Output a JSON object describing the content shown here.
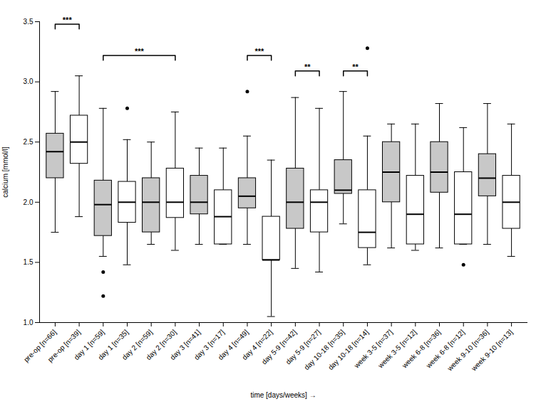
{
  "chart_data": {
    "type": "box",
    "xlabel": "time [days/weeks]",
    "ylabel": "calcium [mmol/l]",
    "categories": [
      "pre-op [n=66]",
      "pre-op [n=39]",
      "day 1 [n=59]",
      "day 1 [n=35]",
      "day 2 [n=59]",
      "day 2 [n=30]",
      "day 3 [n=41]",
      "day 3 [n=17]",
      "day 4 [n=49]",
      "day 4 [n=22]",
      "day 5-9 [n=42]",
      "day 5-9 [n=27]",
      "day 10-18 [n=35]",
      "day 10-18 [n=14]",
      "week 3-5 [n=37]",
      "week 3-5 [n=12]",
      "week 6-8 [n=36]",
      "week 6-8 [n=12]",
      "week 9-10 [n=36]",
      "week 9-10 [n=13]"
    ],
    "boxes": [
      {
        "whislo": 1.75,
        "q1": 2.2,
        "med": 2.42,
        "q3": 2.57,
        "whishi": 2.92,
        "fliers": []
      },
      {
        "whislo": 1.88,
        "q1": 2.32,
        "med": 2.5,
        "q3": 2.72,
        "whishi": 3.05,
        "fliers": []
      },
      {
        "whislo": 1.55,
        "q1": 1.72,
        "med": 1.98,
        "q3": 2.18,
        "whishi": 2.78,
        "fliers": [
          1.42,
          1.22
        ]
      },
      {
        "whislo": 1.48,
        "q1": 1.83,
        "med": 2.0,
        "q3": 2.17,
        "whishi": 2.52,
        "fliers": [
          2.78
        ]
      },
      {
        "whislo": 1.65,
        "q1": 1.75,
        "med": 2.0,
        "q3": 2.2,
        "whishi": 2.5,
        "fliers": []
      },
      {
        "whislo": 1.6,
        "q1": 1.87,
        "med": 2.0,
        "q3": 2.28,
        "whishi": 2.75,
        "fliers": []
      },
      {
        "whislo": 1.65,
        "q1": 1.9,
        "med": 2.0,
        "q3": 2.22,
        "whishi": 2.45,
        "fliers": []
      },
      {
        "whislo": 1.65,
        "q1": 1.65,
        "med": 1.88,
        "q3": 2.1,
        "whishi": 2.45,
        "fliers": []
      },
      {
        "whislo": 1.65,
        "q1": 1.95,
        "med": 2.05,
        "q3": 2.2,
        "whishi": 2.55,
        "fliers": [
          2.92
        ]
      },
      {
        "whislo": 1.05,
        "q1": 1.52,
        "med": 1.52,
        "q3": 1.88,
        "whishi": 2.35,
        "fliers": []
      },
      {
        "whislo": 1.45,
        "q1": 1.78,
        "med": 2.0,
        "q3": 2.28,
        "whishi": 2.87,
        "fliers": []
      },
      {
        "whislo": 1.42,
        "q1": 1.75,
        "med": 2.0,
        "q3": 2.1,
        "whishi": 2.78,
        "fliers": []
      },
      {
        "whislo": 1.82,
        "q1": 2.07,
        "med": 2.1,
        "q3": 2.35,
        "whishi": 2.92,
        "fliers": []
      },
      {
        "whislo": 1.48,
        "q1": 1.62,
        "med": 1.75,
        "q3": 2.1,
        "whishi": 2.55,
        "fliers": [
          3.28
        ]
      },
      {
        "whislo": 1.62,
        "q1": 2.0,
        "med": 2.25,
        "q3": 2.5,
        "whishi": 2.65,
        "fliers": []
      },
      {
        "whislo": 1.6,
        "q1": 1.65,
        "med": 1.9,
        "q3": 2.22,
        "whishi": 2.65,
        "fliers": []
      },
      {
        "whislo": 1.62,
        "q1": 2.08,
        "med": 2.25,
        "q3": 2.5,
        "whishi": 2.82,
        "fliers": []
      },
      {
        "whislo": 1.65,
        "q1": 1.65,
        "med": 1.9,
        "q3": 2.25,
        "whishi": 2.62,
        "fliers": [
          1.48
        ]
      },
      {
        "whislo": 1.65,
        "q1": 2.05,
        "med": 2.2,
        "q3": 2.4,
        "whishi": 2.82,
        "fliers": []
      },
      {
        "whislo": 1.55,
        "q1": 1.78,
        "med": 2.0,
        "q3": 2.22,
        "whishi": 2.65,
        "fliers": []
      }
    ],
    "colors": [
      "#c8c8c8",
      "#ffffff",
      "#c8c8c8",
      "#ffffff",
      "#c8c8c8",
      "#ffffff",
      "#c8c8c8",
      "#ffffff",
      "#c8c8c8",
      "#ffffff",
      "#c8c8c8",
      "#ffffff",
      "#c8c8c8",
      "#ffffff",
      "#c8c8c8",
      "#ffffff",
      "#c8c8c8",
      "#ffffff",
      "#c8c8c8",
      "#ffffff"
    ],
    "ylim": [
      1.0,
      3.5
    ],
    "yticks": [
      {
        "value": 1.0,
        "label": "1.0"
      },
      1.5,
      {
        "value": 2.0,
        "label": "2.0"
      },
      2.5,
      {
        "value": 3.0,
        "label": "3.0"
      },
      3.5
    ],
    "annotations": [
      {
        "text": "***",
        "from": "pre-op [n=66]",
        "to": "pre-op [n=39]",
        "y": 3.44,
        "y2": 3.48
      },
      {
        "text": "***",
        "from": "day 1 [n=59]",
        "to": "day 2 [n=30]",
        "y": 3.18,
        "y2": 3.22
      },
      {
        "text": "***",
        "from": "day 4 [n=49]",
        "to": "day 4 [n=22]",
        "y": 3.18,
        "y2": 3.22
      },
      {
        "text": "**",
        "from": "day 5-9 [n=42]",
        "to": "day 5-9 [n=27]",
        "y": 3.05,
        "y2": 3.09
      },
      {
        "text": "**",
        "from": "day 10-18 [n=35]",
        "to": "day 10-18 [n=14]",
        "y": 3.05,
        "y2": 3.09
      }
    ]
  }
}
